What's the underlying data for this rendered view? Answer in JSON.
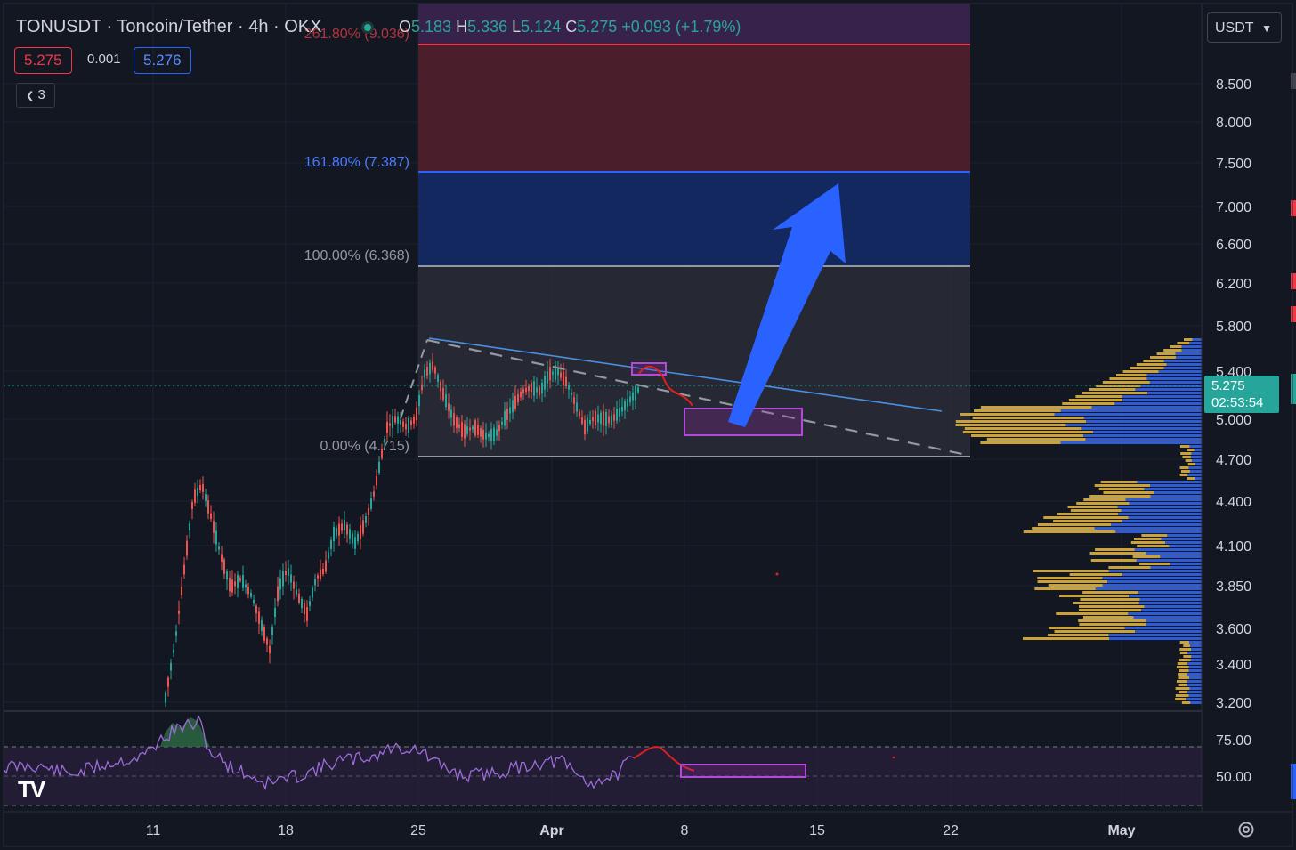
{
  "header": {
    "symbol_line": "TONUSDT · Toncoin/Tether · 4h · OKX",
    "open_label": "O",
    "open": "5.183",
    "high_label": "H",
    "high": "5.336",
    "low_label": "L",
    "low": "5.124",
    "close_label": "C",
    "close": "5.275",
    "change": "+0.093 (+1.79%)"
  },
  "trade": {
    "bid": "5.275",
    "spread": "0.001",
    "ask": "5.276"
  },
  "indicators_collapse": {
    "label": "3",
    "icon": "chevron-down-icon"
  },
  "currency_select": {
    "value": "USDT",
    "icon": "chevron-down-icon"
  },
  "fib_labels": {
    "level_261": "261.80% (9.036)",
    "level_161": "161.80% (7.387)",
    "level_100": "100.00% (6.368)",
    "level_0": "0.00% (4.715)"
  },
  "price_axis": [
    "8.500",
    "8.000",
    "7.500",
    "7.000",
    "6.600",
    "6.200",
    "5.800",
    "5.400",
    "5.000",
    "4.700",
    "4.400",
    "4.100",
    "3.850",
    "3.600",
    "3.400",
    "3.200"
  ],
  "rsi_axis": [
    "75.00",
    "50.00"
  ],
  "last_price": {
    "value": "5.275",
    "countdown": "02:53:54"
  },
  "time_axis": [
    "11",
    "18",
    "25",
    "Apr",
    "8",
    "15",
    "22",
    "May"
  ],
  "colors": {
    "background": "#131722",
    "up": "#26a69a",
    "down": "#ef5350",
    "fib_red_zone": "#4a1f2b",
    "fib_blue_zone": "#12285e",
    "fib_gray_zone": "#2a2d36",
    "arrow": "#2962ff",
    "rsi_line": "#9c6dd8",
    "volume_profile_up": "#2f5bd3",
    "volume_profile_down": "#c9a33a"
  },
  "logo": {
    "text": "TV",
    "icon": "tradingview-logo-icon"
  },
  "settings": {
    "icon": "gear-icon"
  }
}
